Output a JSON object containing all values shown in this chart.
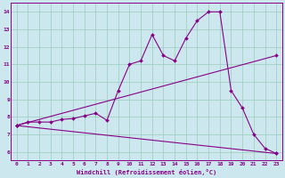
{
  "xlabel": "Windchill (Refroidissement éolien,°C)",
  "ylabel": "",
  "bg_color": "#cce8ee",
  "line_color": "#880088",
  "grid_color": "#99ccbb",
  "xlim": [
    -0.5,
    23.5
  ],
  "ylim": [
    5.5,
    14.5
  ],
  "xticks": [
    0,
    1,
    2,
    3,
    4,
    5,
    6,
    7,
    8,
    9,
    10,
    11,
    12,
    13,
    14,
    15,
    16,
    17,
    18,
    19,
    20,
    21,
    22,
    23
  ],
  "yticks": [
    6,
    7,
    8,
    9,
    10,
    11,
    12,
    13,
    14
  ],
  "line1_x": [
    0,
    1,
    2,
    3,
    4,
    5,
    6,
    7,
    8,
    9,
    10,
    11,
    12,
    13,
    14,
    15,
    16,
    17,
    18,
    19,
    20,
    21,
    22,
    23
  ],
  "line1_y": [
    7.5,
    7.7,
    7.7,
    7.7,
    7.85,
    7.9,
    8.05,
    8.2,
    7.8,
    9.5,
    11.0,
    11.2,
    12.7,
    11.5,
    11.2,
    12.5,
    13.5,
    14.0,
    14.0,
    9.5,
    8.5,
    7.0,
    6.2,
    5.9
  ],
  "line2_x": [
    0,
    23
  ],
  "line2_y": [
    7.5,
    11.5
  ],
  "line3_x": [
    0,
    23
  ],
  "line3_y": [
    7.5,
    5.9
  ],
  "tick_fontsize": 4.5,
  "xlabel_fontsize": 5.0
}
